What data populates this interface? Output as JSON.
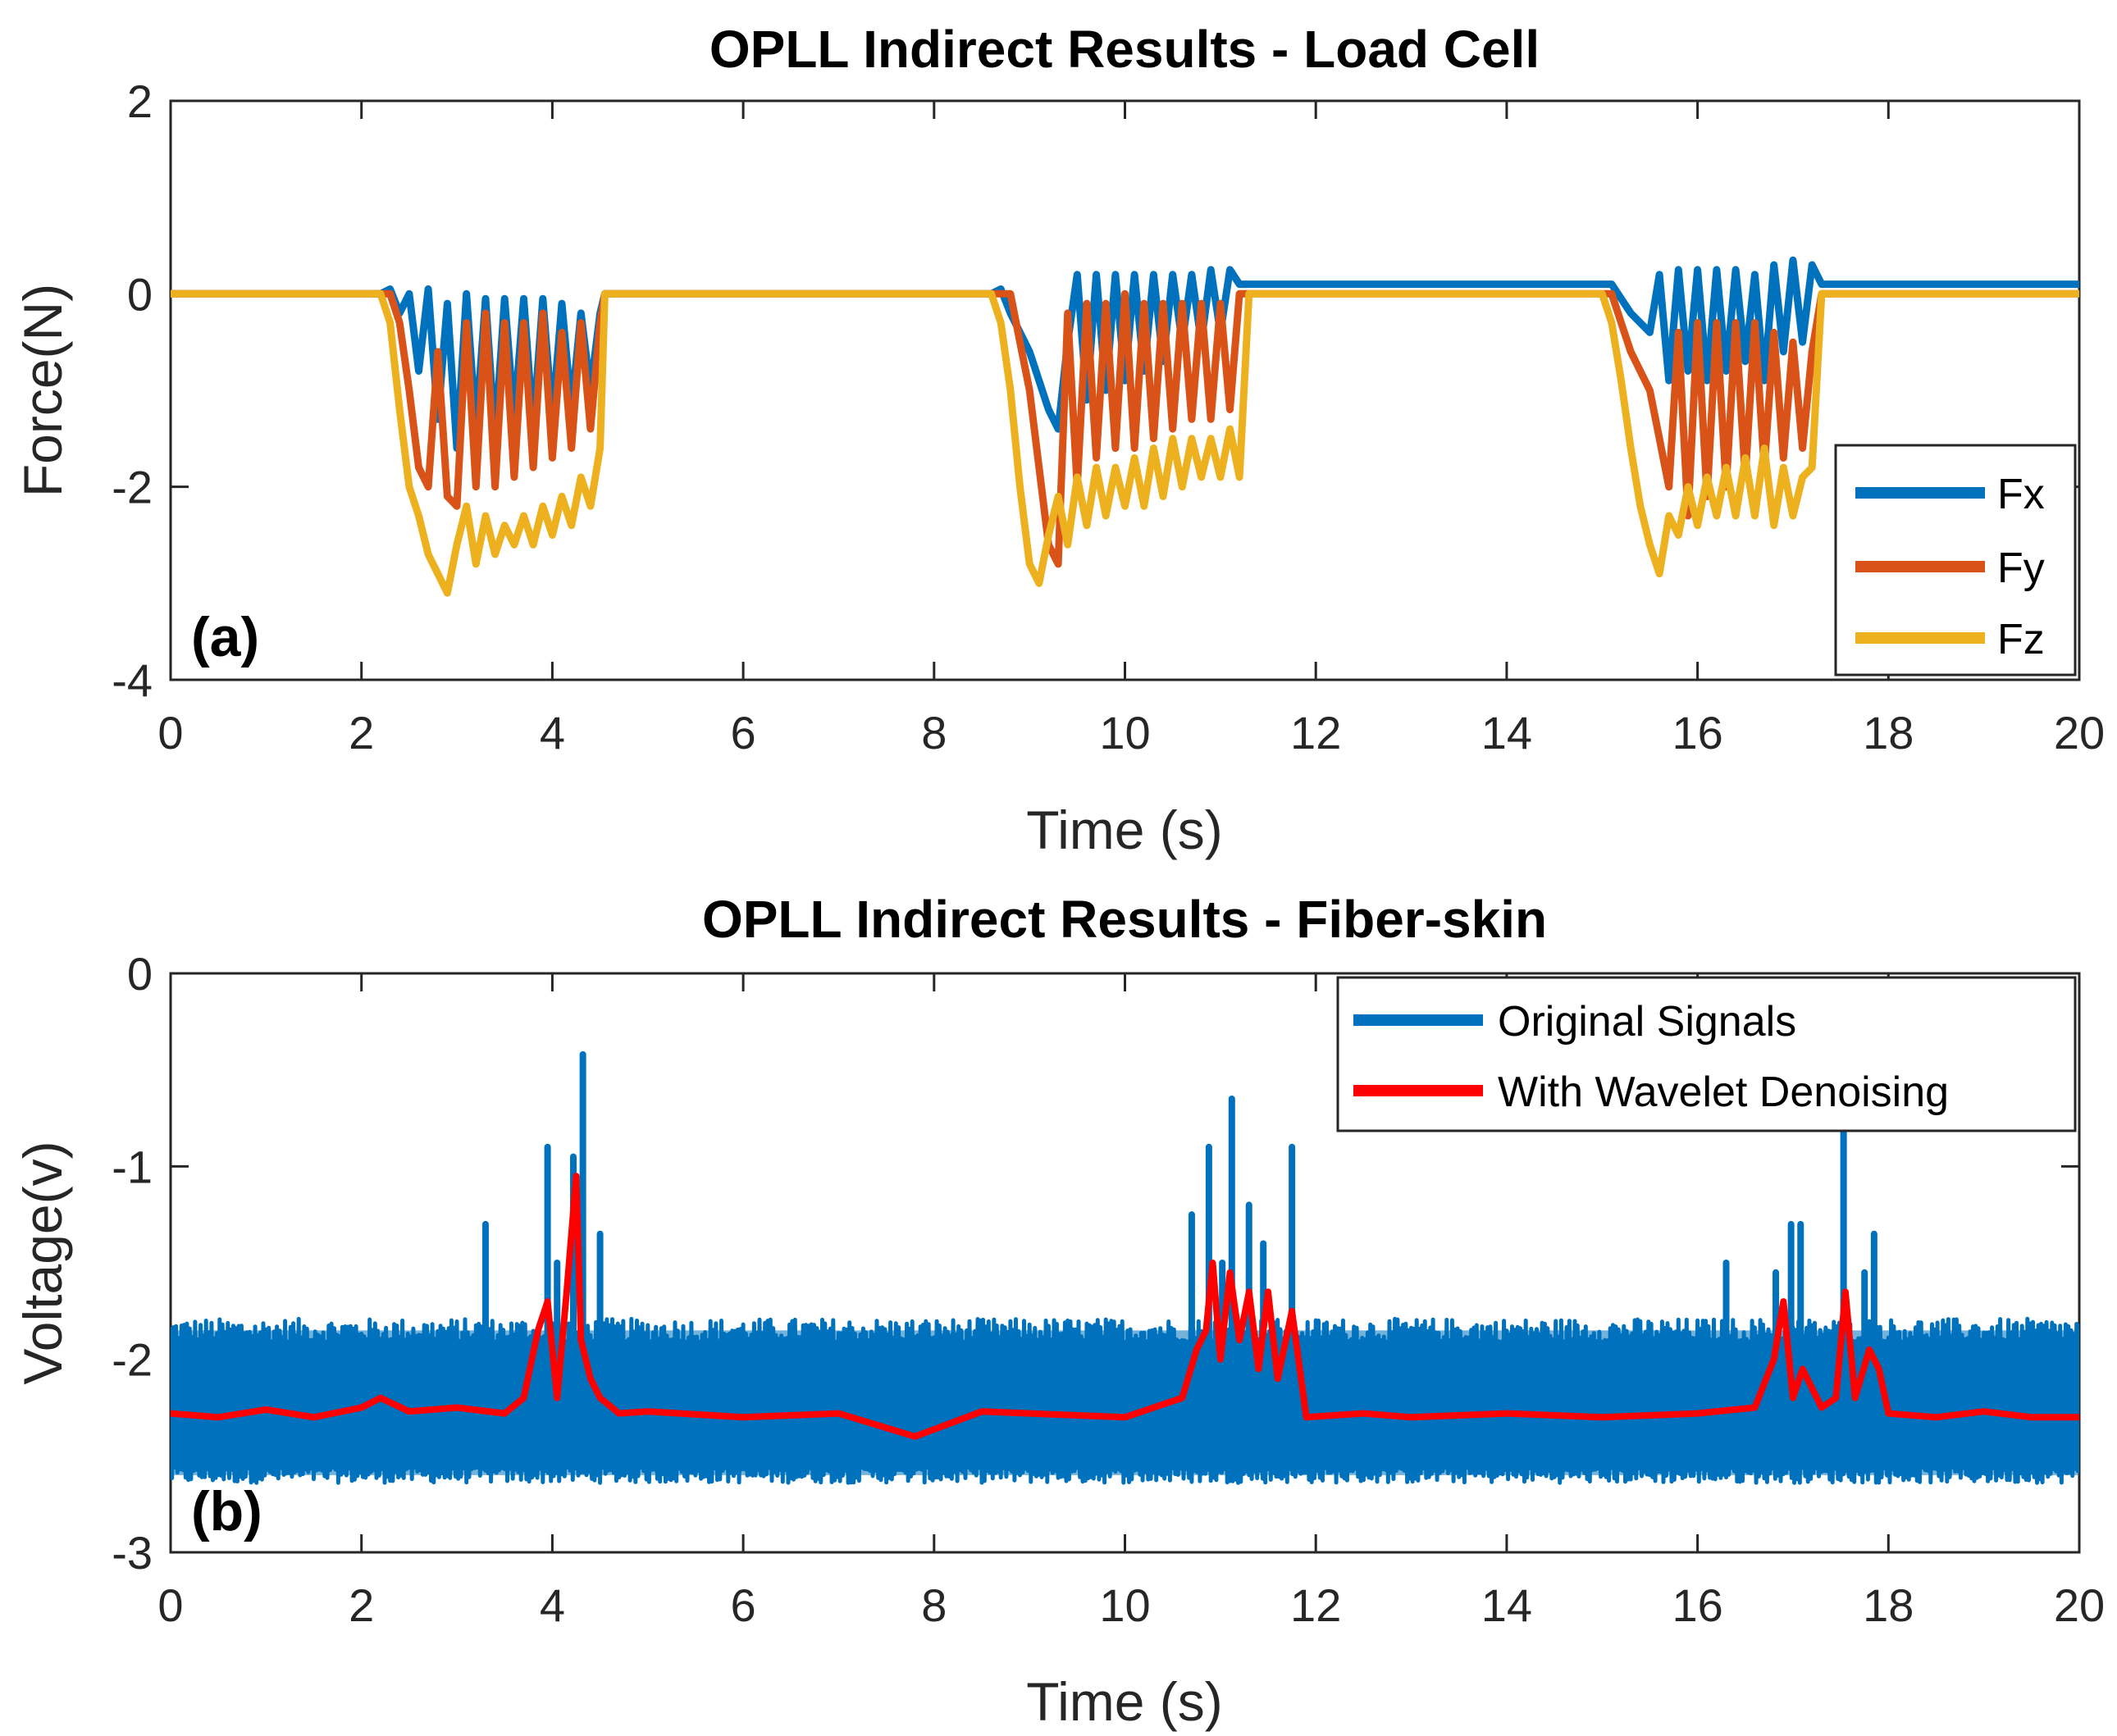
{
  "chart_data": [
    {
      "type": "line",
      "panel_label": "(a)",
      "title": "OPLL Indirect Results - Load Cell",
      "xlabel": "Time (s)",
      "ylabel": "Force(N)",
      "xlim": [
        0,
        20
      ],
      "ylim": [
        -4,
        2
      ],
      "xticks": [
        0,
        2,
        4,
        6,
        8,
        10,
        12,
        14,
        16,
        18,
        20
      ],
      "yticks": [
        -4,
        -2,
        0,
        2
      ],
      "xtick_labels": [
        "0",
        "2",
        "4",
        "6",
        "8",
        "10",
        "12",
        "14",
        "16",
        "18",
        "20"
      ],
      "ytick_labels": [
        "-4",
        "-2",
        "0",
        "2"
      ],
      "legend_position": "right",
      "series": [
        {
          "name": "Fx",
          "color": "#0072BD",
          "x": [
            0,
            2.2,
            2.3,
            2.4,
            2.5,
            2.6,
            2.7,
            2.8,
            2.9,
            3.0,
            3.1,
            3.2,
            3.3,
            3.4,
            3.5,
            3.6,
            3.7,
            3.8,
            3.9,
            4.0,
            4.1,
            4.2,
            4.3,
            4.4,
            4.5,
            4.55,
            4.6,
            8.6,
            8.7,
            8.8,
            9.0,
            9.2,
            9.3,
            9.4,
            9.5,
            9.6,
            9.7,
            9.8,
            9.9,
            10.0,
            10.1,
            10.2,
            10.3,
            10.4,
            10.5,
            10.6,
            10.7,
            10.8,
            10.9,
            11.0,
            11.1,
            11.2,
            11.3,
            15.0,
            15.1,
            15.3,
            15.5,
            15.6,
            15.7,
            15.8,
            15.9,
            16.0,
            16.1,
            16.2,
            16.3,
            16.4,
            16.5,
            16.6,
            16.7,
            16.8,
            16.9,
            17.0,
            17.1,
            17.2,
            17.3,
            20
          ],
          "values": [
            0,
            0,
            0.05,
            -0.2,
            0.0,
            -0.8,
            0.05,
            -1.3,
            -0.1,
            -1.6,
            0.0,
            -1.4,
            -0.05,
            -1.5,
            -0.05,
            -1.3,
            -0.05,
            -1.4,
            -0.05,
            -1.3,
            -0.1,
            -1.2,
            -0.2,
            -1.0,
            -0.2,
            0.0,
            0.0,
            0.0,
            0.05,
            -0.2,
            -0.6,
            -1.2,
            -1.4,
            -0.5,
            0.2,
            -1.1,
            0.2,
            -1.0,
            0.2,
            -0.9,
            0.2,
            -0.8,
            0.2,
            -0.7,
            0.2,
            -0.5,
            0.2,
            -0.5,
            0.25,
            -0.4,
            0.25,
            0.1,
            0.1,
            0.1,
            0.1,
            -0.2,
            -0.4,
            0.2,
            -0.9,
            0.25,
            -0.8,
            0.25,
            -0.9,
            0.25,
            -0.8,
            0.25,
            -0.7,
            0.2,
            -0.9,
            0.3,
            -0.6,
            0.35,
            -0.5,
            0.3,
            0.1,
            0.1
          ]
        },
        {
          "name": "Fy",
          "color": "#D95319",
          "x": [
            0,
            2.3,
            2.4,
            2.5,
            2.6,
            2.7,
            2.8,
            2.9,
            3.0,
            3.1,
            3.2,
            3.3,
            3.4,
            3.5,
            3.6,
            3.7,
            3.8,
            3.9,
            4.0,
            4.1,
            4.2,
            4.3,
            4.4,
            4.5,
            4.55,
            4.6,
            8.8,
            8.9,
            9.0,
            9.1,
            9.2,
            9.3,
            9.4,
            9.5,
            9.6,
            9.7,
            9.8,
            9.9,
            10.0,
            10.1,
            10.2,
            10.3,
            10.4,
            10.5,
            10.6,
            10.7,
            10.8,
            10.9,
            11.0,
            11.1,
            11.2,
            11.3,
            15.1,
            15.2,
            15.3,
            15.5,
            15.6,
            15.7,
            15.8,
            15.9,
            16.0,
            16.1,
            16.2,
            16.3,
            16.4,
            16.5,
            16.6,
            16.7,
            16.8,
            16.9,
            17.0,
            17.1,
            17.2,
            17.3,
            20
          ],
          "values": [
            0,
            0,
            -0.3,
            -1.0,
            -1.8,
            -2.0,
            -0.6,
            -2.1,
            -2.2,
            -0.3,
            -2.0,
            -0.2,
            -2.0,
            -0.3,
            -1.9,
            -0.3,
            -1.8,
            -0.2,
            -1.7,
            -0.4,
            -1.6,
            -0.3,
            -1.4,
            -0.3,
            0.0,
            0.0,
            0.0,
            -0.5,
            -1.0,
            -1.8,
            -2.6,
            -2.8,
            -0.2,
            -2.0,
            -0.1,
            -1.7,
            -0.1,
            -1.6,
            0.0,
            -1.6,
            -0.1,
            -1.5,
            -0.1,
            -1.4,
            -0.1,
            -1.3,
            -0.1,
            -1.3,
            -0.1,
            -1.2,
            0.0,
            0.0,
            0.0,
            -0.3,
            -0.6,
            -1.0,
            -1.5,
            -2.0,
            -0.4,
            -2.3,
            -0.3,
            -2.1,
            -0.3,
            -2.0,
            -0.3,
            -1.9,
            -0.3,
            -1.8,
            -0.4,
            -1.7,
            -0.5,
            -1.6,
            -0.6,
            0.0,
            0.0
          ]
        },
        {
          "name": "Fz",
          "color": "#EDB120",
          "x": [
            0,
            2.2,
            2.3,
            2.4,
            2.5,
            2.6,
            2.7,
            2.8,
            2.9,
            3.0,
            3.1,
            3.2,
            3.3,
            3.4,
            3.5,
            3.6,
            3.7,
            3.8,
            3.9,
            4.0,
            4.1,
            4.2,
            4.3,
            4.4,
            4.5,
            4.55,
            4.6,
            8.6,
            8.7,
            8.8,
            8.9,
            9.0,
            9.1,
            9.2,
            9.3,
            9.4,
            9.5,
            9.6,
            9.7,
            9.8,
            9.9,
            10.0,
            10.1,
            10.2,
            10.3,
            10.4,
            10.5,
            10.6,
            10.7,
            10.8,
            10.9,
            11.0,
            11.1,
            11.2,
            11.3,
            15.0,
            15.1,
            15.2,
            15.3,
            15.4,
            15.5,
            15.6,
            15.7,
            15.8,
            15.9,
            16.0,
            16.1,
            16.2,
            16.3,
            16.4,
            16.5,
            16.6,
            16.7,
            16.8,
            16.9,
            17.0,
            17.1,
            17.2,
            17.3,
            20
          ],
          "values": [
            0,
            0,
            -0.3,
            -1.2,
            -2.0,
            -2.3,
            -2.7,
            -2.9,
            -3.1,
            -2.6,
            -2.2,
            -2.8,
            -2.3,
            -2.7,
            -2.4,
            -2.6,
            -2.3,
            -2.6,
            -2.2,
            -2.5,
            -2.1,
            -2.4,
            -1.9,
            -2.2,
            -1.6,
            0.0,
            0.0,
            0.0,
            -0.3,
            -1.0,
            -2.0,
            -2.8,
            -3.0,
            -2.5,
            -2.1,
            -2.6,
            -1.9,
            -2.4,
            -1.8,
            -2.3,
            -1.8,
            -2.2,
            -1.7,
            -2.2,
            -1.6,
            -2.1,
            -1.5,
            -2.0,
            -1.5,
            -1.9,
            -1.5,
            -1.9,
            -1.4,
            -1.9,
            0.0,
            0.0,
            -0.3,
            -0.9,
            -1.6,
            -2.2,
            -2.6,
            -2.9,
            -2.3,
            -2.5,
            -2.0,
            -2.4,
            -1.9,
            -2.3,
            -1.8,
            -2.3,
            -1.7,
            -2.3,
            -1.6,
            -2.4,
            -1.8,
            -2.3,
            -1.9,
            -1.8,
            0.0,
            0.0
          ]
        }
      ]
    },
    {
      "type": "line",
      "panel_label": "(b)",
      "title": "OPLL Indirect Results - Fiber-skin",
      "xlabel": "Time (s)",
      "ylabel": "Voltage(v)",
      "xlim": [
        0,
        20
      ],
      "ylim": [
        -3,
        0
      ],
      "xticks": [
        0,
        2,
        4,
        6,
        8,
        10,
        12,
        14,
        16,
        18,
        20
      ],
      "yticks": [
        -3,
        -2,
        -1,
        0
      ],
      "xtick_labels": [
        "0",
        "2",
        "4",
        "6",
        "8",
        "10",
        "12",
        "14",
        "16",
        "18",
        "20"
      ],
      "ytick_labels": [
        "-3",
        "-2",
        "-1",
        "0"
      ],
      "legend_position": "top-right",
      "series": [
        {
          "name": "Original Signals",
          "color": "#0072BD",
          "description": "noisy band between -2.6 and -1.85 with spikes",
          "band": [
            -2.6,
            -1.85
          ],
          "spike_x": [
            3.3,
            3.95,
            4.05,
            4.22,
            4.32,
            4.5,
            10.7,
            10.88,
            11.02,
            11.12,
            11.3,
            11.45,
            11.75,
            16.3,
            16.82,
            16.98,
            17.08,
            17.53,
            17.75,
            17.85
          ],
          "spike_y": [
            -1.3,
            -0.9,
            -1.5,
            -0.95,
            -0.42,
            -1.35,
            -1.25,
            -0.9,
            -1.5,
            -0.65,
            -1.2,
            -1.4,
            -0.9,
            -1.5,
            -1.55,
            -1.3,
            -1.3,
            -0.8,
            -1.55,
            -1.35
          ]
        },
        {
          "name": "With Wavelet Denoising",
          "color": "#FF0000",
          "x": [
            0,
            0.5,
            1.0,
            1.5,
            2.0,
            2.2,
            2.5,
            3.0,
            3.5,
            3.7,
            3.85,
            3.95,
            4.05,
            4.15,
            4.25,
            4.3,
            4.4,
            4.5,
            4.7,
            5.0,
            6.0,
            7.0,
            7.8,
            8.5,
            9.0,
            10.0,
            10.6,
            10.75,
            10.85,
            10.92,
            11.0,
            11.1,
            11.2,
            11.3,
            11.4,
            11.5,
            11.6,
            11.75,
            11.9,
            12.5,
            13.0,
            14.0,
            15.0,
            16.0,
            16.6,
            16.8,
            16.9,
            17.0,
            17.1,
            17.3,
            17.45,
            17.55,
            17.65,
            17.8,
            17.9,
            18.0,
            18.5,
            19.0,
            19.5,
            20
          ],
          "values": [
            -2.28,
            -2.3,
            -2.26,
            -2.3,
            -2.25,
            -2.2,
            -2.27,
            -2.25,
            -2.28,
            -2.2,
            -1.85,
            -1.7,
            -2.2,
            -1.65,
            -1.05,
            -1.9,
            -2.1,
            -2.2,
            -2.28,
            -2.27,
            -2.3,
            -2.28,
            -2.4,
            -2.27,
            -2.28,
            -2.3,
            -2.2,
            -1.95,
            -1.85,
            -1.5,
            -2.0,
            -1.55,
            -1.9,
            -1.65,
            -2.05,
            -1.65,
            -2.1,
            -1.75,
            -2.3,
            -2.28,
            -2.3,
            -2.28,
            -2.3,
            -2.28,
            -2.25,
            -2.0,
            -1.7,
            -2.2,
            -2.05,
            -2.25,
            -2.2,
            -1.65,
            -2.2,
            -1.95,
            -2.05,
            -2.28,
            -2.3,
            -2.27,
            -2.3,
            -2.3
          ]
        }
      ]
    }
  ]
}
